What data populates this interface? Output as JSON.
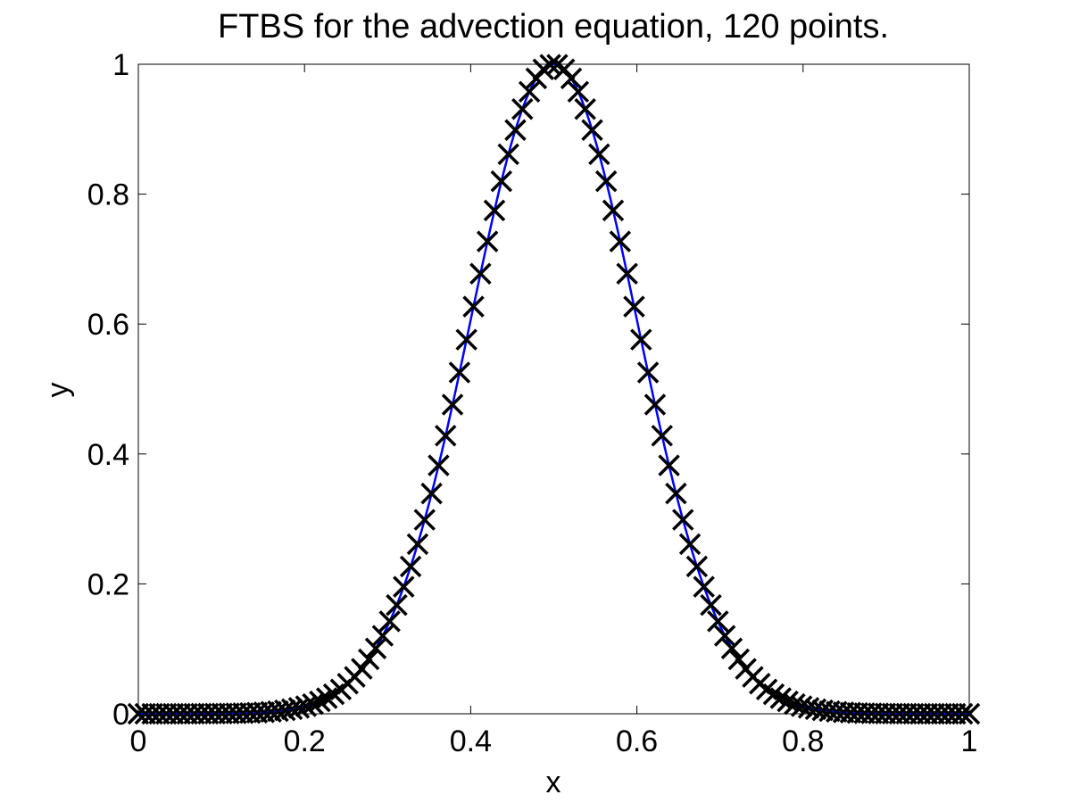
{
  "chart_data": {
    "type": "line",
    "title": "FTBS for the advection equation, 120 points.",
    "xlabel": "x",
    "ylabel": "y",
    "xlim": [
      0,
      1
    ],
    "ylim": [
      0,
      1
    ],
    "xticks": [
      "0",
      "0.2",
      "0.4",
      "0.6",
      "0.8",
      "1"
    ],
    "yticks": [
      "0",
      "0.2",
      "0.4",
      "0.6",
      "0.8",
      "1"
    ],
    "grid": false,
    "legend": "none",
    "series": [
      {
        "style": "line",
        "color": "#0000ff",
        "function": "exp(-50*(x-0.5)^2)",
        "n_points": 400
      },
      {
        "style": "markers",
        "marker": "x",
        "color": "#000000",
        "function": "exp(-50*(x-0.5)^2)",
        "n_points": 120
      }
    ]
  }
}
